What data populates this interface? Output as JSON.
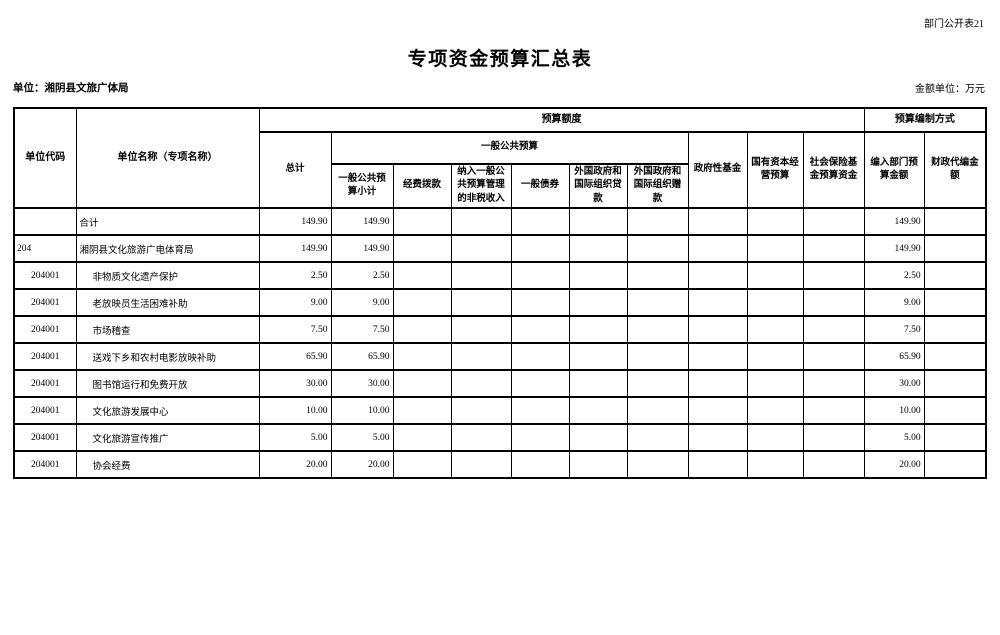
{
  "page": {
    "corner_note": "部门公开表21",
    "title": "专项资金预算汇总表",
    "unit_label": "单位：湘阴县文旅广体局",
    "amount_unit_label": "金额单位：万元"
  },
  "table": {
    "headers": {
      "unit_code": "单位代码",
      "unit_name": "单位名称（专项名称）",
      "budget_amount": "预算额度",
      "budget_method": "预算编制方式",
      "total": "总计",
      "general_public_budget": "一般公共预算",
      "gpb_subtotal": "一般公共预算小计",
      "funding": "经费拨款",
      "nontax": "纳入一般公共预算管理的非税收入",
      "general_bonds": "一般债券",
      "foreign_loans": "外国政府和国际组织贷款",
      "foreign_grants": "外国政府和国际组织赠款",
      "gov_funds": "政府性基金",
      "state_capital": "国有资本经营预算",
      "social_insurance": "社会保险基金预算资金",
      "dept_budget_amount": "编入部门预算金额",
      "fiscal_amount": "财政代编金额"
    },
    "rows": [
      {
        "code": "",
        "name": "合计",
        "total": "149.90",
        "gpb_subtotal": "149.90",
        "dept_amount": "149.90",
        "level": 0
      },
      {
        "code": "204",
        "name": "湘阴县文化旅游广电体育局",
        "total": "149.90",
        "gpb_subtotal": "149.90",
        "dept_amount": "149.90",
        "level": 1
      },
      {
        "code": "204001",
        "name": "非物质文化遗产保护",
        "total": "2.50",
        "gpb_subtotal": "2.50",
        "dept_amount": "2.50",
        "level": 2
      },
      {
        "code": "204001",
        "name": "老放映员生活困难补助",
        "total": "9.00",
        "gpb_subtotal": "9.00",
        "dept_amount": "9.00",
        "level": 2
      },
      {
        "code": "204001",
        "name": "市场稽查",
        "total": "7.50",
        "gpb_subtotal": "7.50",
        "dept_amount": "7.50",
        "level": 2
      },
      {
        "code": "204001",
        "name": "送戏下乡和农村电影放映补助",
        "total": "65.90",
        "gpb_subtotal": "65.90",
        "dept_amount": "65.90",
        "level": 2
      },
      {
        "code": "204001",
        "name": "图书馆运行和免费开放",
        "total": "30.00",
        "gpb_subtotal": "30.00",
        "dept_amount": "30.00",
        "level": 2
      },
      {
        "code": "204001",
        "name": "文化旅游发展中心",
        "total": "10.00",
        "gpb_subtotal": "10.00",
        "dept_amount": "10.00",
        "level": 2
      },
      {
        "code": "204001",
        "name": "文化旅游宣传推广",
        "total": "5.00",
        "gpb_subtotal": "5.00",
        "dept_amount": "5.00",
        "level": 2
      },
      {
        "code": "204001",
        "name": "协会经费",
        "total": "20.00",
        "gpb_subtotal": "20.00",
        "dept_amount": "20.00",
        "level": 2
      }
    ]
  }
}
